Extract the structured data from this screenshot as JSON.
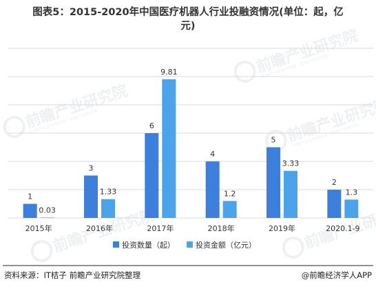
{
  "title": "图表5：2015-2020年中国医疗机器人行业投融资情况(单位：起，亿元)",
  "title_lines": [
    "图表5：2015-2020年中国医疗机器人行业投融资情况(单位：起，亿",
    "元)"
  ],
  "watermark": {
    "text": "前瞻产业研究院",
    "subtext": "中国产业咨询领导者 · 前瞻产业研究院"
  },
  "colors": {
    "series_1": "#3d7fdc",
    "series_2": "#4ba3ec",
    "grid": "#d9d9d9",
    "text": "#333333",
    "footer_line": "#222222"
  },
  "chart_data": {
    "type": "bar",
    "title": "图表5：2015-2020年中国医疗机器人行业投融资情况(单位：起，亿元)",
    "categories": [
      "2015年",
      "2016年",
      "2017年",
      "2018年",
      "2019年",
      "2020.1-9"
    ],
    "series": [
      {
        "name": "投资数量（起）",
        "values": [
          1,
          3,
          6,
          4,
          5,
          2
        ],
        "labels": [
          "1",
          "3",
          "6",
          "4",
          "5",
          "2"
        ],
        "color": "#3d7fdc"
      },
      {
        "name": "投资金额（亿元）",
        "values": [
          0.03,
          1.33,
          9.81,
          1.2,
          3.33,
          1.3
        ],
        "labels": [
          "0.03",
          "1.33",
          "9.81",
          "1.2",
          "3.33",
          "1.3"
        ],
        "color": "#4ba3ec"
      }
    ],
    "ylim": [
      0,
      12
    ],
    "grid": true,
    "legend_position": "bottom"
  },
  "footer": {
    "source": "资料来源：IT桔子   前瞻产业研究院整理",
    "brand": "@前瞻经济学人APP"
  }
}
